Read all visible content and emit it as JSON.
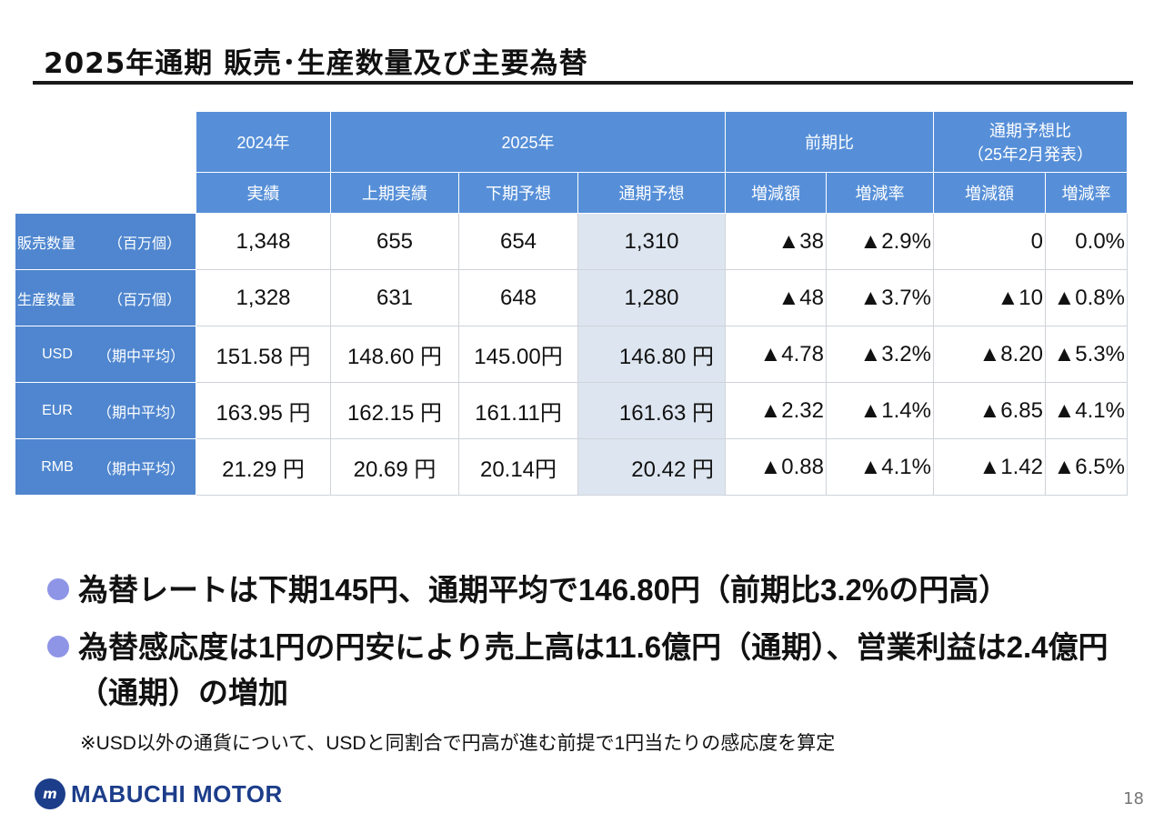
{
  "title": "2025年通期 販売･生産数量及び主要為替",
  "table": {
    "hdr_2024": "2024年",
    "hdr_2025": "2025年",
    "hdr_prev": "前期比",
    "hdr_forecast_line1": "通期予想比",
    "hdr_forecast_line2": "（25年2月発表）",
    "sub_actual": "実績",
    "sub_h1": "上期実績",
    "sub_h2": "下期予想",
    "sub_full": "通期予想",
    "sub_inc_amt": "増減額",
    "sub_inc_rate": "増減率",
    "sub_inc_amt2": "増減額",
    "sub_inc_rate2": "増減率",
    "rows": [
      {
        "name": "販売数量",
        "unit": "（百万個）",
        "v2024": "1,348",
        "h1": "655",
        "h2": "654",
        "full": "1,310",
        "prev_amt": "▲38",
        "prev_rate": "▲2.9%",
        "fc_amt": "0",
        "fc_rate": "0.0%"
      },
      {
        "name": "生産数量",
        "unit": "（百万個）",
        "v2024": "1,328",
        "h1": "631",
        "h2": "648",
        "full": "1,280",
        "prev_amt": "▲48",
        "prev_rate": "▲3.7%",
        "fc_amt": "▲10",
        "fc_rate": "▲0.8%"
      },
      {
        "name": "USD",
        "unit": "（期中平均）",
        "v2024": "151.58 円",
        "h1": "148.60 円",
        "h2": "145.00円",
        "full": "146.80 円",
        "prev_amt": "▲4.78",
        "prev_rate": "▲3.2%",
        "fc_amt": "▲8.20",
        "fc_rate": "▲5.3%"
      },
      {
        "name": "EUR",
        "unit": "（期中平均）",
        "v2024": "163.95 円",
        "h1": "162.15 円",
        "h2": "161.11円",
        "full": "161.63 円",
        "prev_amt": "▲2.32",
        "prev_rate": "▲1.4%",
        "fc_amt": "▲6.85",
        "fc_rate": "▲4.1%"
      },
      {
        "name": "RMB",
        "unit": "（期中平均）",
        "v2024": "21.29 円",
        "h1": "20.69 円",
        "h2": "20.14円",
        "full": "20.42 円",
        "prev_amt": "▲0.88",
        "prev_rate": "▲4.1%",
        "fc_amt": "▲1.42",
        "fc_rate": "▲6.5%"
      }
    ]
  },
  "bullets": [
    "為替レートは下期145円、通期平均で146.80円（前期比3.2%の円高）",
    "為替感応度は1円の円安により売上高は11.6億円（通期）、営業利益は2.4億円（通期）の増加"
  ],
  "note": "※USD以外の通貨について、USDと同割合で円高が進む前提で1円当たりの感応度を算定",
  "logo_text": "MABUCHI MOTOR",
  "page_number": "18",
  "colors": {
    "header_blue": "#568fd8",
    "row_label_blue": "#4f86cf",
    "shade": "#dde6f0",
    "bullet_dot": "#8f95e6",
    "logo": "#1c3d8a"
  }
}
